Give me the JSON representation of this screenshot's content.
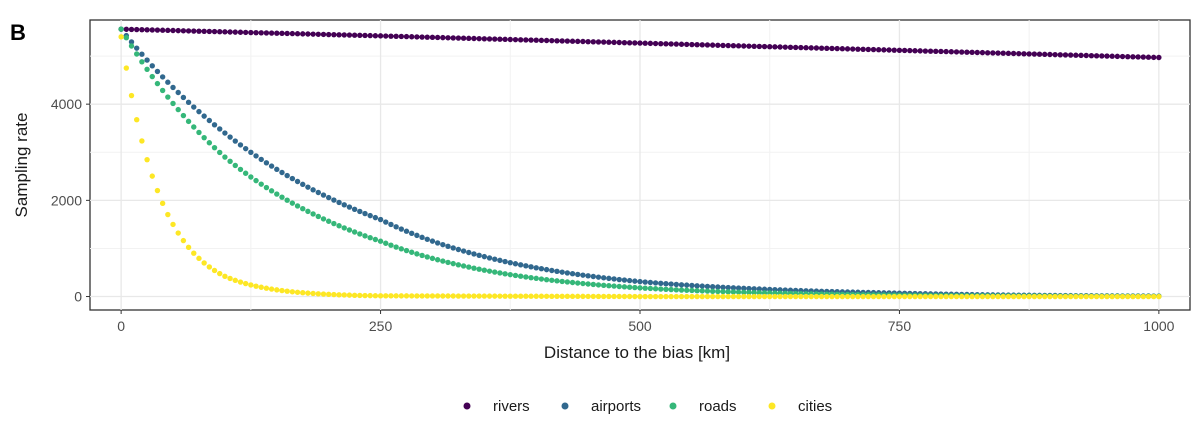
{
  "panel_label": "B",
  "chart_data": {
    "type": "scatter",
    "title": "",
    "xlabel": "Distance to the bias [km]",
    "ylabel": "Sampling rate",
    "xlim": [
      -30,
      1030
    ],
    "ylim": [
      -280,
      5750
    ],
    "x_ticks": [
      0,
      250,
      500,
      750,
      1000
    ],
    "x_tick_labels": [
      "0",
      "250",
      "500",
      "750",
      "1000"
    ],
    "y_ticks": [
      0,
      2000,
      4000
    ],
    "y_tick_labels": [
      "0",
      "2000",
      "4000"
    ],
    "grid": true,
    "legend": "bottom",
    "x_range": [
      0,
      1000
    ],
    "x_step": 5,
    "series": [
      {
        "name": "rivers",
        "color": "#440154",
        "values_at_x": {
          "0": 5560,
          "250": 5420,
          "500": 5270,
          "750": 5120,
          "1000": 4970
        }
      },
      {
        "name": "airports",
        "color": "#31688e",
        "values_at_x": {
          "0": 5560,
          "100": 3400,
          "250": 1600,
          "500": 310,
          "750": 70,
          "1000": 10
        }
      },
      {
        "name": "roads",
        "color": "#35b779",
        "values_at_x": {
          "0": 5560,
          "100": 2900,
          "250": 1150,
          "500": 180,
          "750": 30,
          "1000": 5
        }
      },
      {
        "name": "cities",
        "color": "#fde725",
        "values_at_x": {
          "0": 5400,
          "50": 1500,
          "100": 420,
          "250": 15,
          "500": 0,
          "1000": 0
        }
      }
    ]
  }
}
